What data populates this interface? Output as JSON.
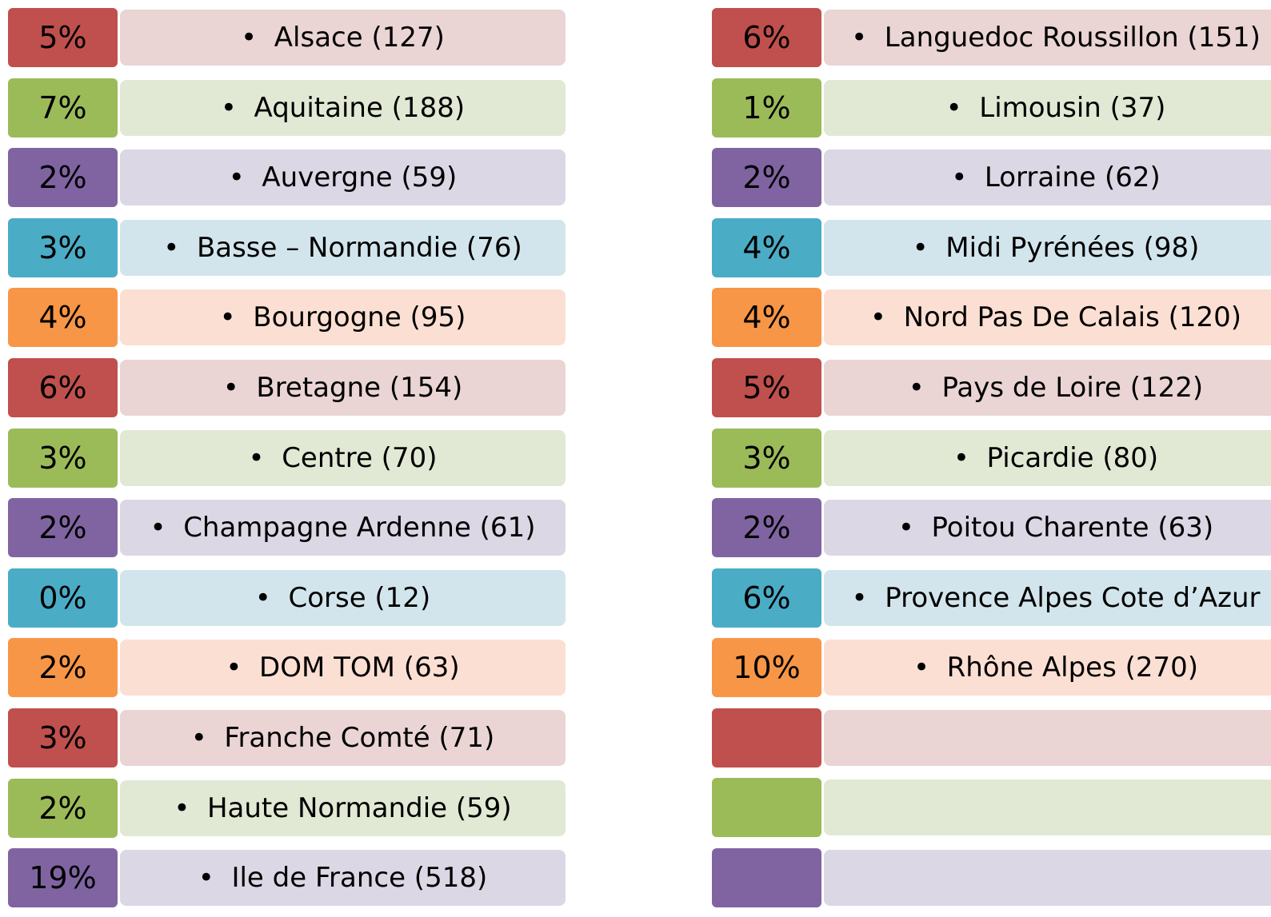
{
  "columns": [
    {
      "items": [
        {
          "percent": "5%",
          "label": "Alsace (127)"
        },
        {
          "percent": "7%",
          "label": "Aquitaine (188)"
        },
        {
          "percent": "2%",
          "label": "Auvergne (59)"
        },
        {
          "percent": "3%",
          "label": "Basse – Normandie (76)"
        },
        {
          "percent": "4%",
          "label": "Bourgogne (95)"
        },
        {
          "percent": "6%",
          "label": "Bretagne (154)"
        },
        {
          "percent": "3%",
          "label": "Centre (70)"
        },
        {
          "percent": "2%",
          "label": "Champagne Ardenne (61)"
        },
        {
          "percent": "0%",
          "label": "Corse (12)"
        },
        {
          "percent": "2%",
          "label": "DOM TOM (63)"
        },
        {
          "percent": "3%",
          "label": "Franche Comté (71)"
        },
        {
          "percent": "2%",
          "label": "Haute Normandie (59)"
        },
        {
          "percent": "19%",
          "label": "Ile de France (518)"
        }
      ]
    },
    {
      "items": [
        {
          "percent": "6%",
          "label": "Languedoc Roussillon (151)"
        },
        {
          "percent": "1%",
          "label": "Limousin (37)"
        },
        {
          "percent": "2%",
          "label": "Lorraine (62)"
        },
        {
          "percent": "4%",
          "label": "Midi Pyrénées (98)"
        },
        {
          "percent": "4%",
          "label": "Nord Pas De Calais (120)"
        },
        {
          "percent": "5%",
          "label": "Pays de Loire (122)"
        },
        {
          "percent": "3%",
          "label": "Picardie (80)"
        },
        {
          "percent": "2%",
          "label": "Poitou Charente (63)"
        },
        {
          "percent": "6%",
          "label": "Provence Alpes Cote d’Azur"
        },
        {
          "percent": "10%",
          "label": "Rhône Alpes (270)"
        }
      ]
    }
  ]
}
